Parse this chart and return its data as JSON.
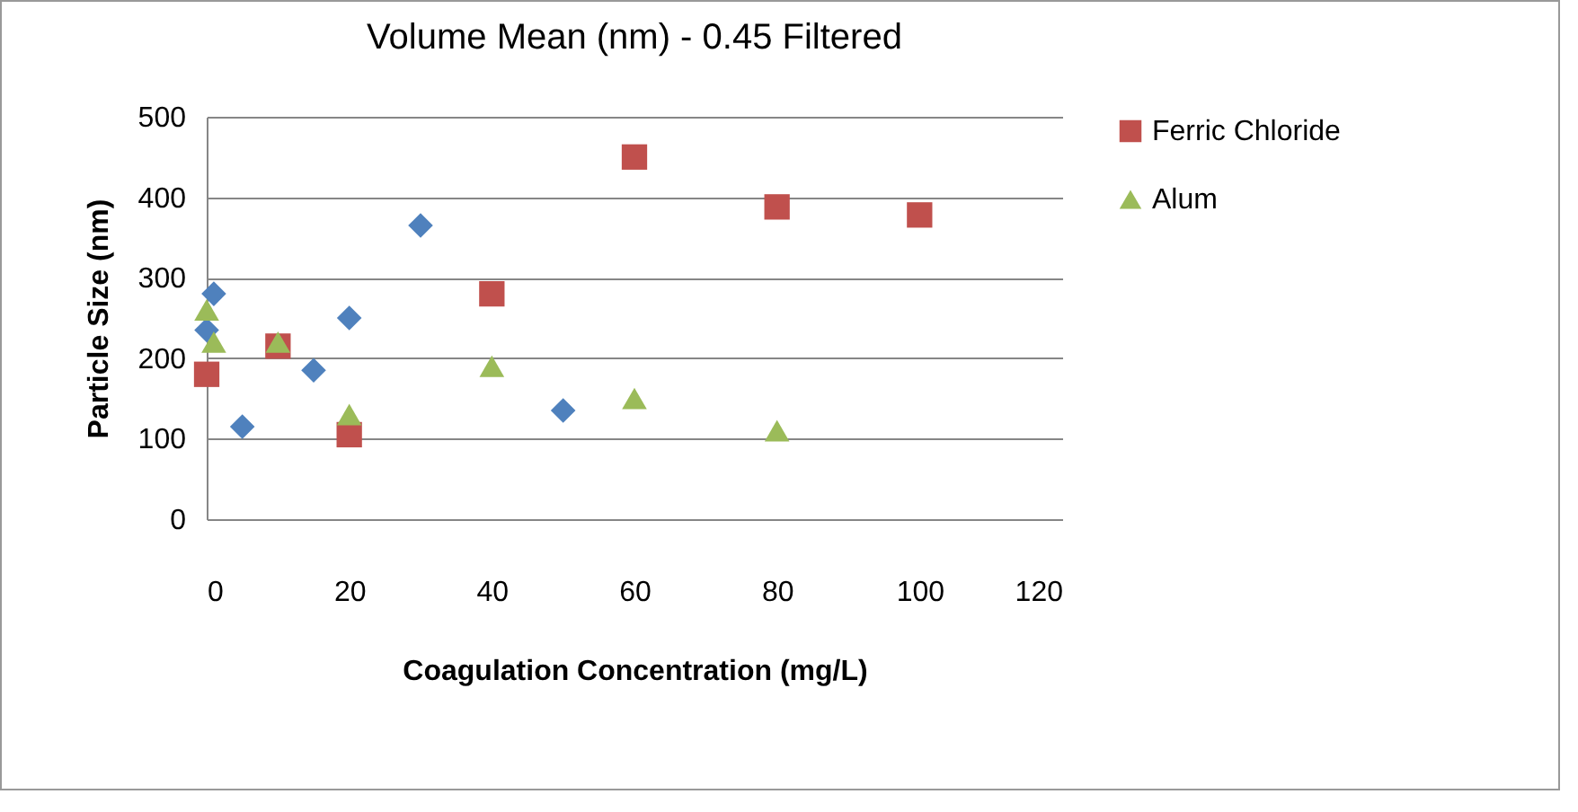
{
  "chart_data": {
    "type": "scatter",
    "title": "Volume Mean (nm) - 0.45 Filtered",
    "xlabel": "Coagulation Concentration (mg/L)",
    "ylabel": "Particle Size (nm)",
    "series": [
      {
        "color": "#4f81bd",
        "marker": "diamond",
        "x": [
          0,
          1,
          5,
          15,
          20,
          30,
          50
        ],
        "values": [
          235,
          280,
          115,
          185,
          250,
          365,
          135
        ]
      },
      {
        "name": "Ferric Chloride",
        "color": "#c0504d",
        "marker": "square",
        "x": [
          0,
          10,
          20,
          40,
          60,
          80,
          100
        ],
        "values": [
          180,
          215,
          105,
          280,
          450,
          388,
          378
        ]
      },
      {
        "name": "Alum",
        "color": "#9bbb59",
        "marker": "triangle",
        "x": [
          0,
          1,
          10,
          20,
          40,
          60,
          80
        ],
        "values": [
          260,
          220,
          220,
          130,
          190,
          150,
          110
        ]
      }
    ],
    "xlim": [
      0,
      120
    ],
    "xticks": [
      0,
      20,
      40,
      60,
      80,
      100,
      120
    ],
    "ylim": [
      0,
      500
    ],
    "yticks": [
      0,
      100,
      200,
      300,
      400,
      500
    ],
    "grid": "y",
    "legend": "right"
  }
}
